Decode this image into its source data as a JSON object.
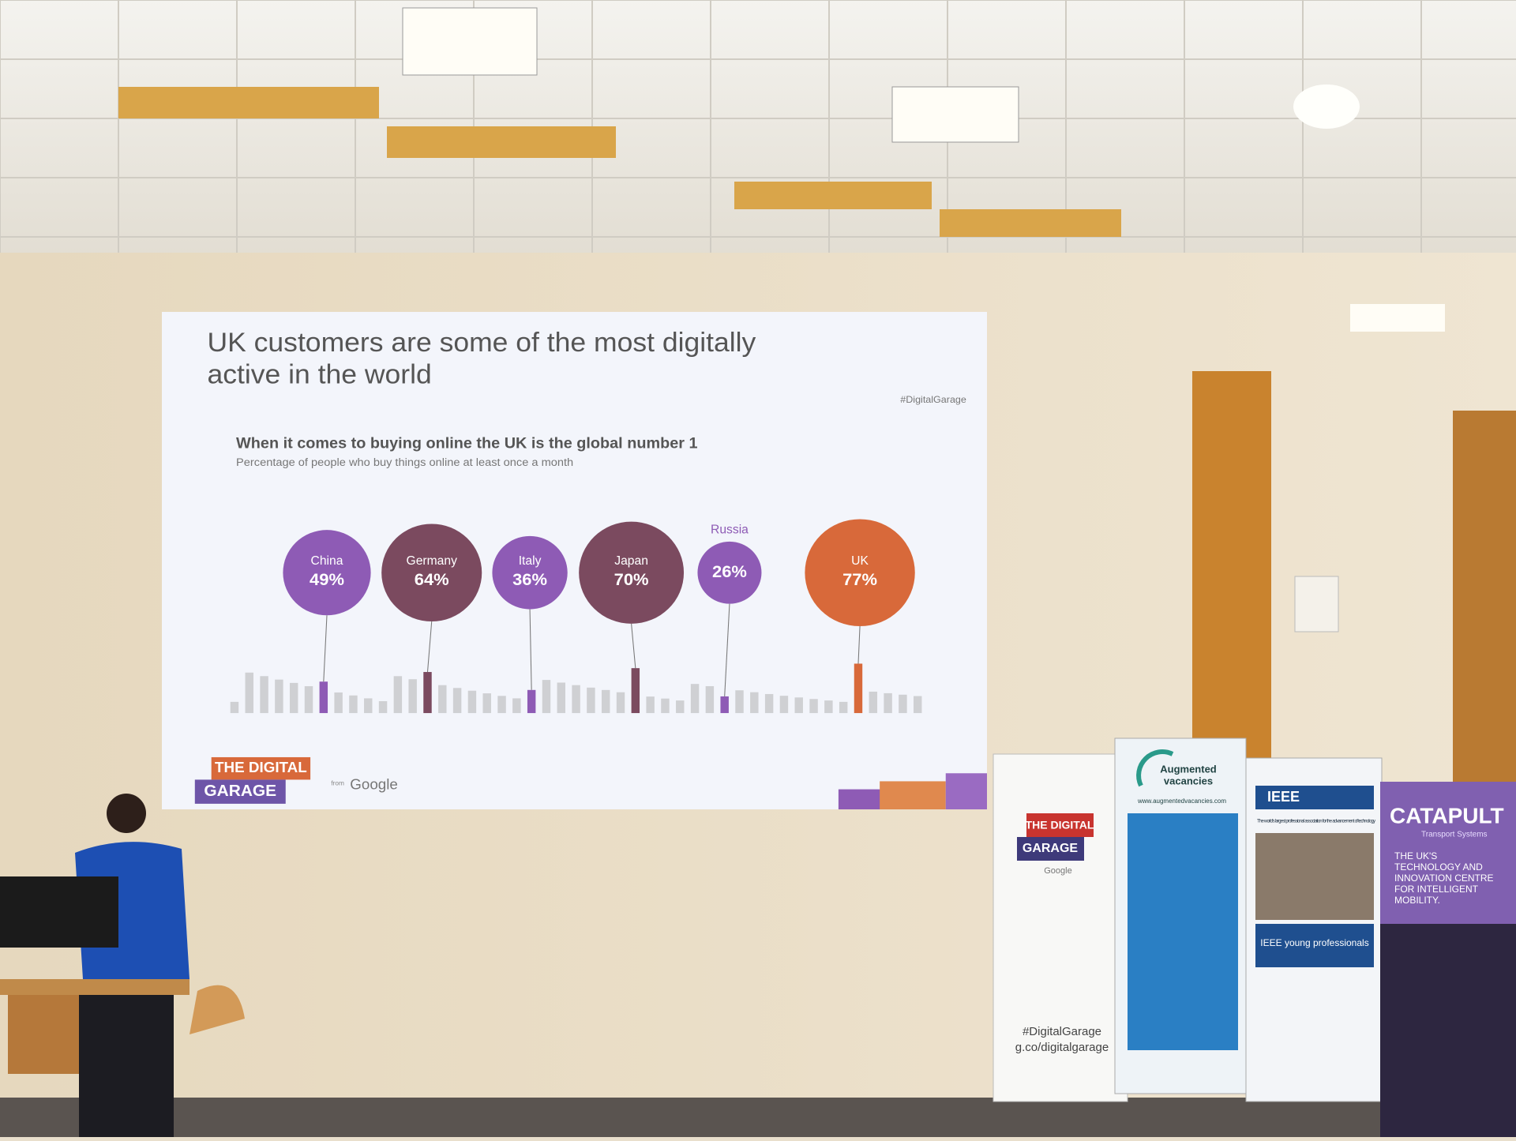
{
  "slide": {
    "title_lines": [
      "UK customers are some of the most digitally",
      "active in the world"
    ],
    "hashtag": "#DigitalGarage",
    "logo_line1": "THE DIGITAL",
    "logo_line2": "GARAGE",
    "from": "from",
    "brand": "Google"
  },
  "chart_data": {
    "type": "bubble",
    "title": "When it comes to buying online the UK is the global number 1",
    "subtitle": "Percentage of people who buy things online at least once a month",
    "categories": [
      "China",
      "Germany",
      "Italy",
      "Japan",
      "Russia",
      "UK"
    ],
    "values": [
      49,
      64,
      36,
      70,
      26,
      77
    ],
    "value_labels": [
      "49%",
      "64%",
      "36%",
      "70%",
      "26%",
      "77%"
    ],
    "colors": [
      "#8e5bb5",
      "#7b4a5f",
      "#8e5bb5",
      "#7b4a5f",
      "#8e5bb5",
      "#d8693a"
    ]
  },
  "banners": {
    "digital_garage": {
      "line1": "THE DIGITAL",
      "line2": "GARAGE",
      "brand": "Google",
      "hashtag": "#DigitalGarage",
      "url": "g.co/digitalgarage"
    },
    "augmented": {
      "name_line1": "Augmented",
      "name_line2": "vacancies",
      "url": "www.augmentedvacancies.com"
    },
    "ieee": {
      "name": "IEEE",
      "tagline": "The world's largest professional association for the advancement of technology",
      "sub": "IEEE young professionals"
    },
    "catapult": {
      "name": "CATAPULT",
      "sub": "Transport Systems",
      "lines": [
        "THE UK'S",
        "TECHNOLOGY AND",
        "INNOVATION CENTRE",
        "FOR INTELLIGENT",
        "MOBILITY."
      ]
    }
  }
}
